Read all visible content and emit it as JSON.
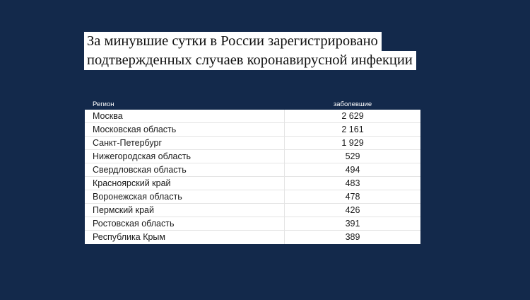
{
  "title": {
    "line1": "За минувшие сутки в России зарегистрировано",
    "line2": "подтвержденных случаев коронавирусной инфекции"
  },
  "chart_data": {
    "type": "table",
    "columns": [
      "Регион",
      "заболевшие"
    ],
    "rows": [
      {
        "region": "Москва",
        "cases": "2 629"
      },
      {
        "region": "Московская область",
        "cases": "2 161"
      },
      {
        "region": "Санкт-Петербург",
        "cases": "1 929"
      },
      {
        "region": "Нижегородская область",
        "cases": "529"
      },
      {
        "region": "Свердловская область",
        "cases": "494"
      },
      {
        "region": "Красноярский край",
        "cases": "483"
      },
      {
        "region": "Воронежская область",
        "cases": "478"
      },
      {
        "region": "Пермский край",
        "cases": "426"
      },
      {
        "region": "Ростовская область",
        "cases": "391"
      },
      {
        "region": "Республика Крым",
        "cases": "389"
      }
    ]
  }
}
